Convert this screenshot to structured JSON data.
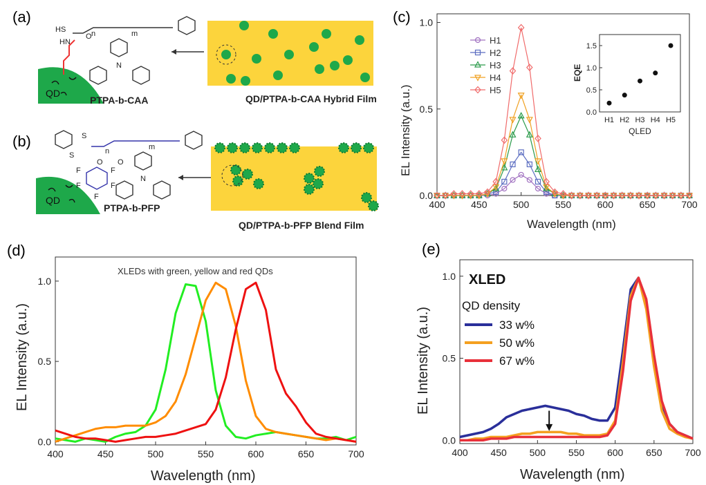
{
  "panels": {
    "a": {
      "label": "(a)",
      "qd": "QD",
      "polymer": "PTPA-b-CAA",
      "film": "QD/PTPA-b-CAA Hybrid Film",
      "chem_labels": [
        "HS",
        "n",
        "m",
        "HN",
        "O",
        "N"
      ]
    },
    "b": {
      "label": "(b)",
      "qd": "QD",
      "polymer": "PTPA-b-PFP",
      "film": "QD/PTPA-b-PFP Blend Film",
      "chem_labels": [
        "S",
        "S",
        "n",
        "m",
        "O",
        "O",
        "F",
        "F",
        "F",
        "F",
        "F",
        "N"
      ]
    },
    "c": {
      "label": "(c)"
    },
    "d": {
      "label": "(d)"
    },
    "e": {
      "label": "(e)"
    }
  },
  "chart_data": [
    {
      "id": "c",
      "type": "line",
      "xlabel": "Wavelength (nm)",
      "ylabel": "EL Intensity (a.u.)",
      "xlim": [
        400,
        700
      ],
      "ylim": [
        0,
        1.05
      ],
      "xticks": [
        "400",
        "450",
        "500",
        "550",
        "600",
        "650",
        "700"
      ],
      "yticks": [
        "0.0",
        "0.5",
        "1.0"
      ],
      "x": [
        400,
        410,
        420,
        430,
        440,
        450,
        460,
        470,
        480,
        490,
        500,
        510,
        520,
        530,
        540,
        550,
        560,
        570,
        580,
        590,
        600,
        610,
        620,
        630,
        640,
        650,
        660,
        670,
        680,
        690,
        700
      ],
      "series": [
        {
          "name": "H1",
          "color": "#a070c0",
          "marker": "circle",
          "values": [
            0.0,
            0.0,
            0.0,
            0.0,
            0.0,
            0.0,
            0.0,
            0.01,
            0.04,
            0.09,
            0.12,
            0.09,
            0.04,
            0.01,
            0.0,
            0.0,
            0.0,
            0.0,
            0.0,
            0.0,
            0.0,
            0.0,
            0.0,
            0.0,
            0.0,
            0.0,
            0.0,
            0.0,
            0.0,
            0.0,
            0.0
          ]
        },
        {
          "name": "H2",
          "color": "#5a6cc0",
          "marker": "square",
          "values": [
            0.0,
            0.0,
            0.0,
            0.0,
            0.0,
            0.0,
            0.01,
            0.02,
            0.08,
            0.18,
            0.25,
            0.18,
            0.08,
            0.02,
            0.0,
            0.0,
            0.0,
            0.0,
            0.0,
            0.0,
            0.0,
            0.0,
            0.0,
            0.0,
            0.0,
            0.0,
            0.0,
            0.0,
            0.0,
            0.0,
            0.0
          ]
        },
        {
          "name": "H3",
          "color": "#2a9a4a",
          "marker": "triangle-up",
          "values": [
            0.0,
            0.0,
            0.0,
            0.0,
            0.0,
            0.0,
            0.01,
            0.04,
            0.16,
            0.35,
            0.46,
            0.35,
            0.15,
            0.04,
            0.01,
            0.0,
            0.0,
            0.0,
            0.0,
            0.0,
            0.0,
            0.0,
            0.0,
            0.0,
            0.0,
            0.0,
            0.0,
            0.0,
            0.0,
            0.0,
            0.0
          ]
        },
        {
          "name": "H4",
          "color": "#f0a020",
          "marker": "triangle-down",
          "values": [
            0.0,
            0.0,
            0.0,
            0.0,
            0.0,
            0.0,
            0.01,
            0.05,
            0.2,
            0.44,
            0.58,
            0.44,
            0.2,
            0.05,
            0.01,
            0.0,
            0.0,
            0.0,
            0.0,
            0.0,
            0.0,
            0.0,
            0.0,
            0.0,
            0.0,
            0.0,
            0.0,
            0.0,
            0.0,
            0.0,
            0.0
          ]
        },
        {
          "name": "H5",
          "color": "#f06a6a",
          "marker": "diamond",
          "values": [
            0.0,
            0.0,
            0.01,
            0.01,
            0.01,
            0.01,
            0.02,
            0.08,
            0.32,
            0.72,
            0.97,
            0.74,
            0.33,
            0.08,
            0.02,
            0.01,
            0.0,
            0.0,
            0.0,
            0.0,
            0.0,
            0.0,
            0.0,
            0.0,
            0.0,
            0.0,
            0.0,
            0.0,
            0.0,
            0.0,
            0.0
          ]
        }
      ],
      "legend": "top-left",
      "inset": {
        "type": "scatter",
        "xlabel": "QLED",
        "ylabel": "EQE",
        "categories": [
          "H1",
          "H2",
          "H3",
          "H4",
          "H5"
        ],
        "values": [
          0.2,
          0.38,
          0.7,
          0.88,
          1.5
        ],
        "ylim": [
          0,
          1.75
        ],
        "yticks": [
          "0.0",
          "0.5",
          "1.0",
          "1.5"
        ]
      }
    },
    {
      "id": "d",
      "type": "line",
      "title": "XLEDs with green, yellow and red QDs",
      "xlabel": "Wavelength (nm)",
      "ylabel": "EL Intensity (a.u.)",
      "xlim": [
        400,
        700
      ],
      "ylim": [
        -0.02,
        1.15
      ],
      "xticks": [
        "400",
        "450",
        "500",
        "550",
        "600",
        "650",
        "700"
      ],
      "yticks": [
        "0.0",
        "0.5",
        "1.0"
      ],
      "x": [
        400,
        410,
        420,
        430,
        440,
        450,
        460,
        470,
        480,
        490,
        500,
        510,
        520,
        530,
        540,
        550,
        560,
        570,
        580,
        590,
        600,
        610,
        620,
        630,
        640,
        650,
        660,
        670,
        680,
        690,
        700
      ],
      "series": [
        {
          "name": "green",
          "color": "#22ee22",
          "values": [
            0.02,
            0.01,
            0.0,
            0.02,
            0.01,
            0.0,
            0.03,
            0.05,
            0.06,
            0.1,
            0.2,
            0.45,
            0.8,
            0.98,
            0.97,
            0.75,
            0.32,
            0.1,
            0.03,
            0.02,
            0.04,
            0.05,
            0.06,
            0.05,
            0.04,
            0.03,
            0.02,
            0.02,
            0.03,
            0.01,
            0.03
          ]
        },
        {
          "name": "yellow",
          "color": "#ff8c00",
          "values": [
            0.0,
            0.02,
            0.04,
            0.06,
            0.08,
            0.09,
            0.09,
            0.1,
            0.1,
            0.1,
            0.12,
            0.16,
            0.25,
            0.42,
            0.65,
            0.88,
            0.99,
            0.95,
            0.72,
            0.38,
            0.16,
            0.08,
            0.06,
            0.05,
            0.04,
            0.03,
            0.02,
            0.01,
            0.02,
            0.01,
            0.0
          ]
        },
        {
          "name": "red",
          "color": "#ee1111",
          "values": [
            0.07,
            0.05,
            0.03,
            0.02,
            0.02,
            0.01,
            0.0,
            0.01,
            0.02,
            0.03,
            0.03,
            0.04,
            0.05,
            0.07,
            0.09,
            0.11,
            0.2,
            0.4,
            0.7,
            0.95,
            0.99,
            0.82,
            0.45,
            0.3,
            0.22,
            0.12,
            0.05,
            0.03,
            0.02,
            0.01,
            0.0
          ]
        }
      ]
    },
    {
      "id": "e",
      "type": "line",
      "xlabel": "Wavelength (nm)",
      "ylabel": "EL Intensity (a.u.)",
      "xlim": [
        400,
        700
      ],
      "ylim": [
        -0.02,
        1.1
      ],
      "xticks": [
        "400",
        "450",
        "500",
        "550",
        "600",
        "650",
        "700"
      ],
      "yticks": [
        "0.0",
        "0.5",
        "1.0"
      ],
      "legend_title": "XLED",
      "legend_subtitle": "QD density",
      "legend": "top-left",
      "annotation": "arrow-down",
      "x": [
        400,
        410,
        420,
        430,
        440,
        450,
        460,
        470,
        480,
        490,
        500,
        510,
        520,
        530,
        540,
        550,
        560,
        570,
        580,
        590,
        600,
        610,
        620,
        630,
        640,
        650,
        660,
        670,
        680,
        690,
        700
      ],
      "series": [
        {
          "name": "33 w%",
          "color": "#2a2f9a",
          "values": [
            0.02,
            0.03,
            0.04,
            0.05,
            0.07,
            0.1,
            0.14,
            0.16,
            0.18,
            0.19,
            0.2,
            0.21,
            0.2,
            0.19,
            0.18,
            0.16,
            0.15,
            0.13,
            0.12,
            0.12,
            0.2,
            0.55,
            0.92,
            0.99,
            0.82,
            0.5,
            0.22,
            0.1,
            0.05,
            0.03,
            0.01
          ]
        },
        {
          "name": "50 w%",
          "color": "#f4a020",
          "values": [
            0.0,
            0.0,
            0.01,
            0.01,
            0.02,
            0.02,
            0.02,
            0.03,
            0.04,
            0.04,
            0.05,
            0.05,
            0.05,
            0.05,
            0.04,
            0.04,
            0.03,
            0.03,
            0.03,
            0.04,
            0.12,
            0.48,
            0.88,
            0.99,
            0.8,
            0.45,
            0.18,
            0.07,
            0.04,
            0.02,
            0.01
          ]
        },
        {
          "name": "67 w%",
          "color": "#e8303a",
          "values": [
            0.0,
            0.0,
            0.0,
            0.0,
            0.01,
            0.01,
            0.01,
            0.02,
            0.02,
            0.02,
            0.02,
            0.02,
            0.02,
            0.02,
            0.02,
            0.02,
            0.02,
            0.02,
            0.02,
            0.03,
            0.1,
            0.42,
            0.85,
            0.99,
            0.86,
            0.52,
            0.24,
            0.1,
            0.05,
            0.03,
            0.01
          ]
        }
      ]
    }
  ]
}
